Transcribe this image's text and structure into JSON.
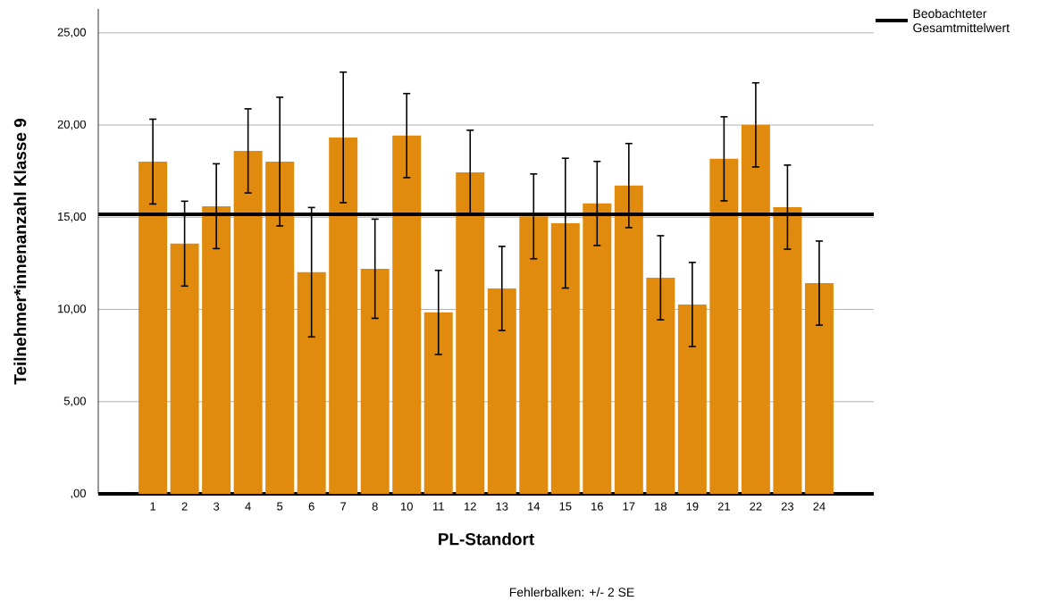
{
  "chart_data": {
    "type": "bar",
    "xlabel": "PL-Standort",
    "ylabel": "Teilnehmer*innenanzahl Klasse 9",
    "categories": [
      "1",
      "2",
      "3",
      "4",
      "5",
      "6",
      "7",
      "8",
      "10",
      "11",
      "12",
      "13",
      "14",
      "15",
      "16",
      "17",
      "18",
      "19",
      "21",
      "22",
      "23",
      "24"
    ],
    "values": [
      18.02,
      13.57,
      15.6,
      18.6,
      18.02,
      12.02,
      19.33,
      12.21,
      19.43,
      9.84,
      17.44,
      11.14,
      15.05,
      14.68,
      15.75,
      16.72,
      11.72,
      10.27,
      18.17,
      20.01,
      15.55,
      11.43
    ],
    "errors": [
      2.3,
      2.3,
      2.3,
      2.28,
      3.49,
      3.51,
      3.54,
      2.69,
      2.28,
      2.28,
      2.28,
      2.28,
      2.3,
      3.52,
      2.28,
      2.28,
      2.28,
      2.28,
      2.28,
      2.28,
      2.28,
      2.28
    ],
    "color": "#e08b0e",
    "ylim": [
      0,
      26.3
    ],
    "yticks": [
      {
        "value": 0,
        "label": ",00"
      },
      {
        "value": 5,
        "label": "5,00"
      },
      {
        "value": 10,
        "label": "10,00"
      },
      {
        "value": 15,
        "label": "15,00"
      },
      {
        "value": 20,
        "label": "20,00"
      },
      {
        "value": 25,
        "label": "25,00"
      }
    ],
    "grid": "y",
    "ref_lines": [
      {
        "axis": "y",
        "value": 15.16,
        "label": "Beobachteter Gesamtmittelwert",
        "color": "#000000",
        "line_style": "solid"
      }
    ],
    "legend": "top right",
    "annotations": [
      "Fehlerbalken: +/- 2 SE"
    ]
  }
}
